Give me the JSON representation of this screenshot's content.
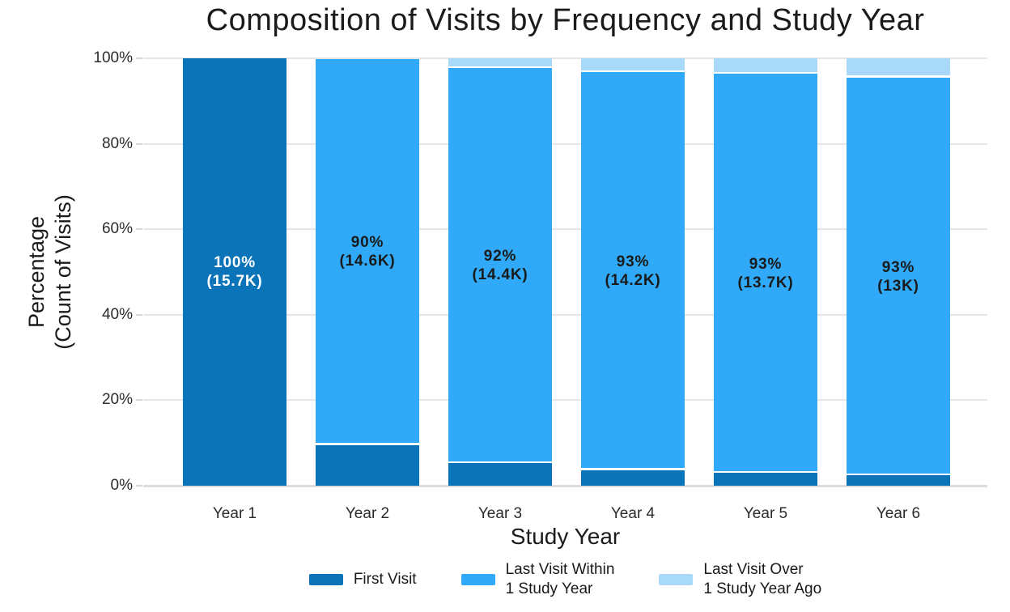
{
  "chart_data": {
    "type": "bar",
    "stacked": true,
    "title": "Composition of Visits by Frequency and Study Year",
    "xlabel": "Study Year",
    "ylabel": "Percentage\n(Count of Visits)",
    "ylim": [
      0,
      100
    ],
    "yticks": [
      "0%",
      "20%",
      "40%",
      "60%",
      "80%",
      "100%"
    ],
    "ytick_percents": [
      0,
      20,
      40,
      60,
      80,
      100
    ],
    "grid": "horizontal",
    "legend_position": "bottom",
    "categories": [
      "Year 1",
      "Year 2",
      "Year 3",
      "Year 4",
      "Year 5",
      "Year 6"
    ],
    "series": [
      {
        "name": "First Visit",
        "color": "#0b74b8",
        "values": [
          100,
          9.5,
          5.3,
          3.6,
          3.0,
          2.4
        ]
      },
      {
        "name": "Last Visit Within\n1 Study Year",
        "color": "#2fa9f8",
        "values": [
          0,
          90.3,
          92.4,
          93.1,
          93.4,
          93.1
        ]
      },
      {
        "name": "Last Visit Over\n1 Study Year Ago",
        "color": "#a9d9f8",
        "values": [
          0,
          0,
          2.3,
          3.3,
          3.6,
          4.5
        ]
      }
    ],
    "bar_labels": [
      "100%\n(15.7K)",
      "90%\n(14.6K)",
      "92%\n(14.4K)",
      "93%\n(14.2K)",
      "93%\n(13.7K)",
      "93%\n(13K)"
    ],
    "bar_label_colors": [
      "#ffffff",
      "#1a1a1a",
      "#1a1a1a",
      "#1a1a1a",
      "#1a1a1a",
      "#1a1a1a"
    ]
  },
  "style_colors": {
    "grid": "#e6e6e6",
    "axis_line": "#dcdcdc",
    "tick_text": "#2b2b2b",
    "title_text": "#1b1b1b"
  }
}
